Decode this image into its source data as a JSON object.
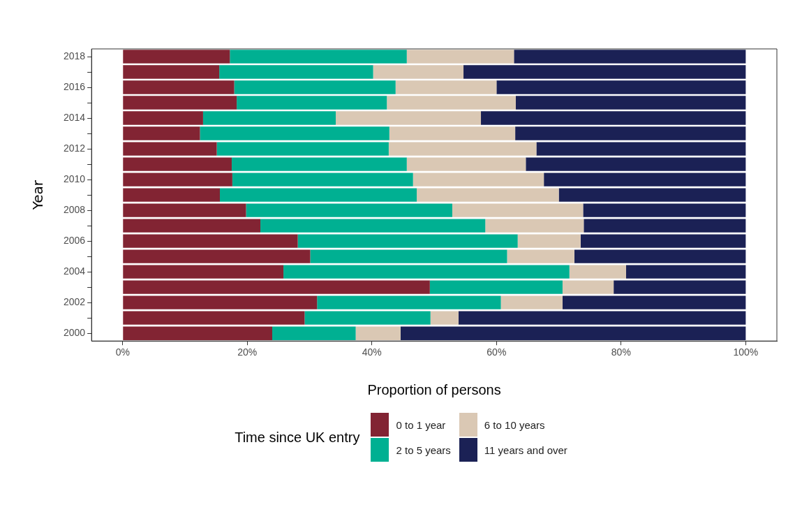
{
  "chart_data": {
    "type": "bar",
    "orientation": "horizontal",
    "stacked": true,
    "xlabel": "Proportion of persons",
    "ylabel": "Year",
    "legend_title": "Time since UK entry",
    "legend": "bottom",
    "grid": false,
    "categories": [
      "2018",
      null,
      "2016",
      null,
      "2014",
      null,
      "2012",
      null,
      "2010",
      null,
      "2008",
      null,
      "2006",
      null,
      "2004",
      null,
      "2002",
      null,
      "2000"
    ],
    "xlim": [
      -5,
      105
    ],
    "xticks": [
      {
        "value": 0,
        "label": "0%"
      },
      {
        "value": 20,
        "label": "20%"
      },
      {
        "value": 40,
        "label": "40%"
      },
      {
        "value": 60,
        "label": "60%"
      },
      {
        "value": 80,
        "label": "80%"
      },
      {
        "value": 100,
        "label": "100%"
      }
    ],
    "series": [
      {
        "name": "0 to 1 year",
        "color": "#822433",
        "values": [
          17.2,
          15.5,
          17.9,
          18.3,
          12.9,
          12.4,
          15.1,
          17.5,
          17.6,
          15.6,
          19.8,
          22.1,
          28.1,
          30.1,
          25.8,
          49.3,
          31.2,
          29.2,
          24.0
        ]
      },
      {
        "name": "2 to 5 years",
        "color": "#00b092",
        "values": [
          28.4,
          24.7,
          25.9,
          24.1,
          21.3,
          30.4,
          27.6,
          28.1,
          29.0,
          31.6,
          33.1,
          36.1,
          35.3,
          31.6,
          45.9,
          21.3,
          29.5,
          20.2,
          13.4
        ]
      },
      {
        "name": "6 to 10 years",
        "color": "#dac8b4",
        "values": [
          17.2,
          14.5,
          16.2,
          20.7,
          23.3,
          20.2,
          23.7,
          19.1,
          21.0,
          22.8,
          21.0,
          15.8,
          10.1,
          10.8,
          9.1,
          8.2,
          9.9,
          4.5,
          7.2
        ]
      },
      {
        "name": "11 years and over",
        "color": "#1b2155",
        "values": [
          37.2,
          45.3,
          40.0,
          36.9,
          42.5,
          37.0,
          33.6,
          35.3,
          32.4,
          30.0,
          26.1,
          26.0,
          26.5,
          27.5,
          19.2,
          21.2,
          29.4,
          46.1,
          55.4
        ]
      }
    ]
  }
}
